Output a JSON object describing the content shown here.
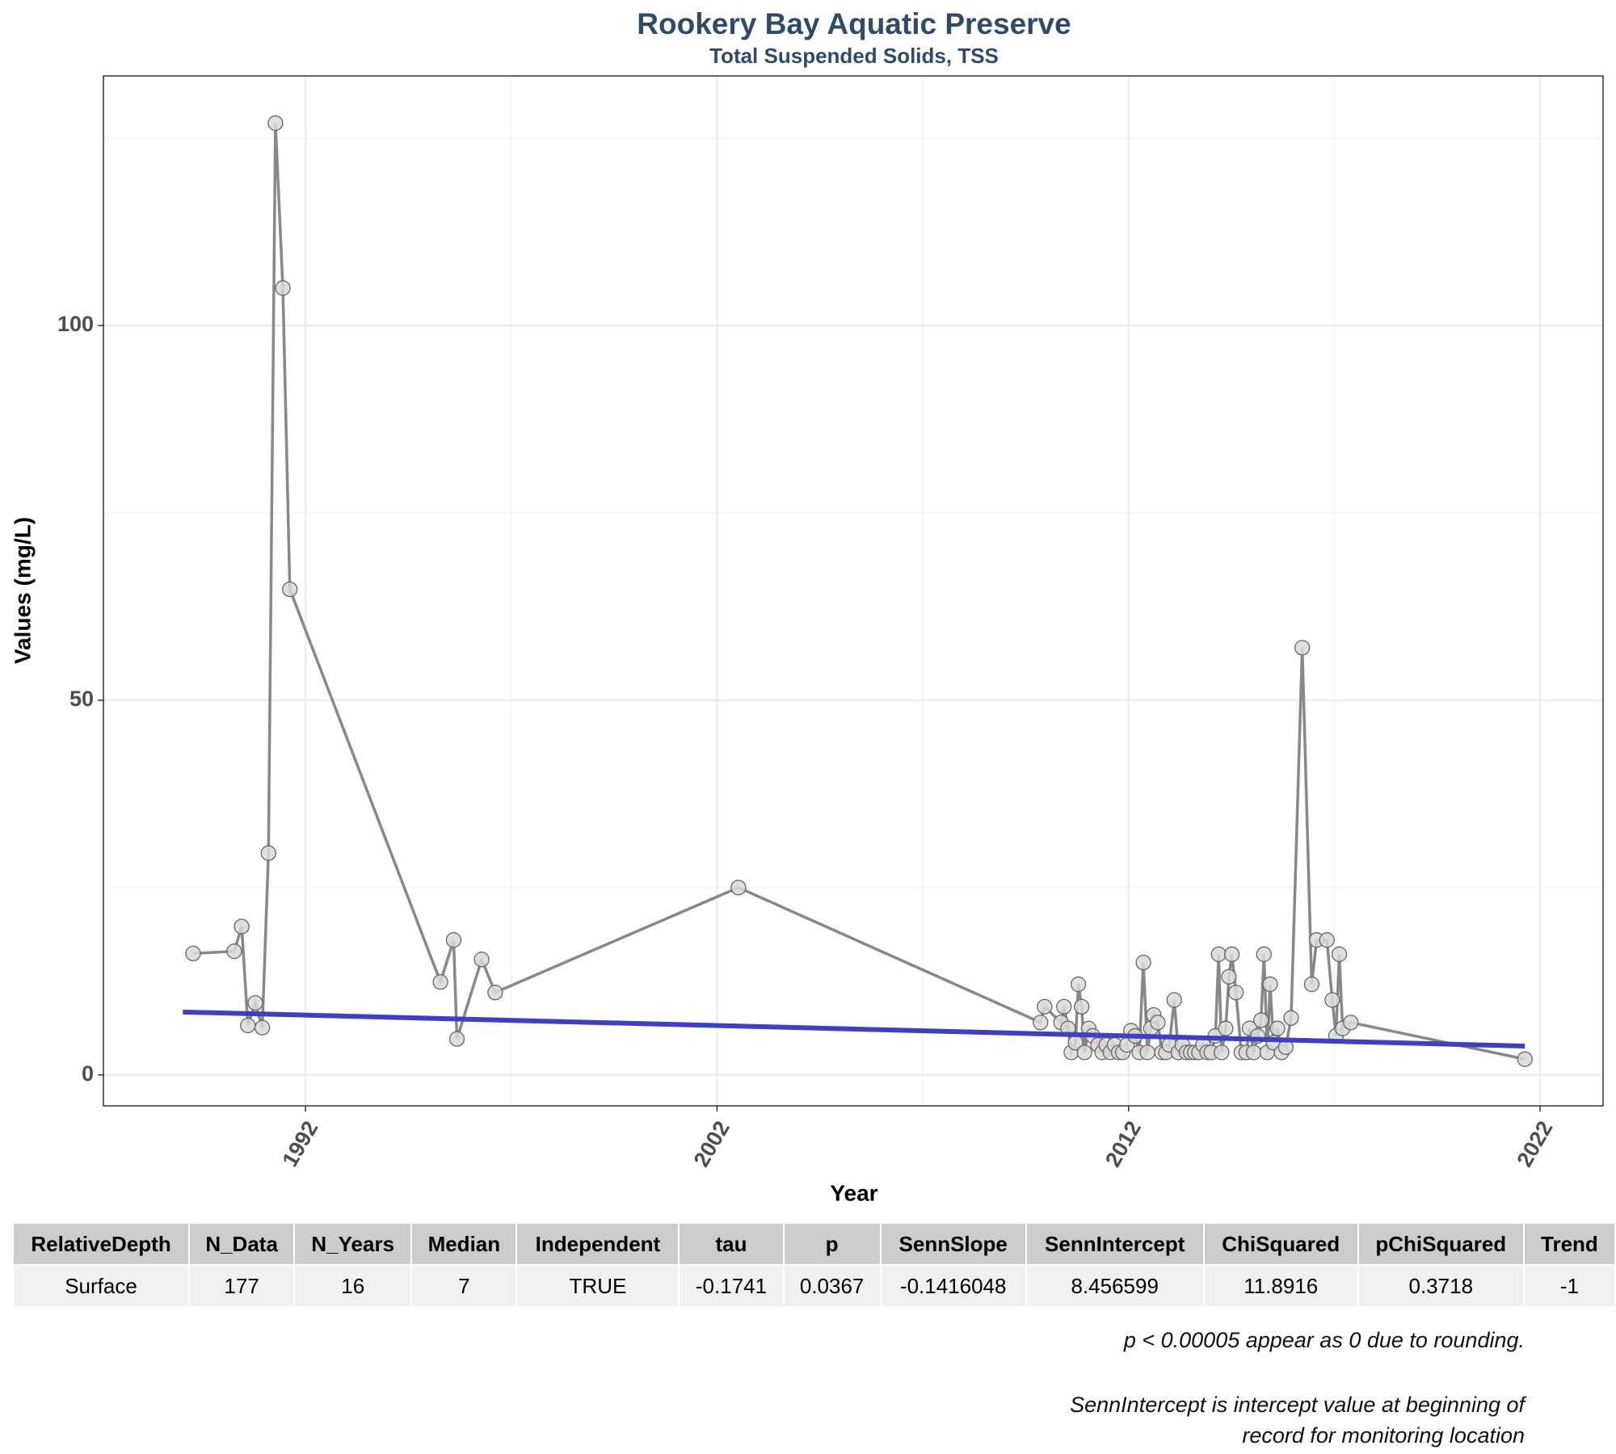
{
  "chart_data": {
    "type": "line",
    "title": "Rookery Bay Aquatic Preserve",
    "subtitle": "Total Suspended Solids, TSS",
    "x_label": "Year",
    "y_label": "Values (mg/L)",
    "x": [
      1989.27,
      1990.27,
      1990.45,
      1990.6,
      1990.78,
      1990.95,
      1991.1,
      1991.27,
      1991.45,
      1991.62,
      1995.28,
      1995.6,
      1995.68,
      1996.28,
      1996.61,
      2002.52,
      2009.86,
      2009.96,
      2010.36,
      2010.43,
      2010.53,
      2010.61,
      2010.71,
      2010.78,
      2010.86,
      2010.93,
      2011.03,
      2011.13,
      2011.26,
      2011.36,
      2011.46,
      2011.56,
      2011.66,
      2011.76,
      2011.86,
      2011.96,
      2012.06,
      2012.16,
      2012.26,
      2012.36,
      2012.46,
      2012.54,
      2012.61,
      2012.71,
      2012.81,
      2012.91,
      2012.99,
      2013.11,
      2013.21,
      2013.31,
      2013.41,
      2013.51,
      2013.61,
      2013.71,
      2013.81,
      2013.91,
      2014.01,
      2014.11,
      2014.19,
      2014.26,
      2014.36,
      2014.44,
      2014.51,
      2014.61,
      2014.74,
      2014.86,
      2014.94,
      2015.04,
      2015.14,
      2015.22,
      2015.29,
      2015.37,
      2015.44,
      2015.52,
      2015.62,
      2015.72,
      2015.82,
      2015.95,
      2016.22,
      2016.45,
      2016.57,
      2016.82,
      2016.95,
      2017.04,
      2017.12,
      2017.2,
      2017.4,
      2021.63
    ],
    "series": [
      {
        "color": "#888888",
        "marker_color": "#d9d9d9",
        "values": [
          16.2,
          16.5,
          19.8,
          6.6,
          9.6,
          6.3,
          29.6,
          127,
          105,
          64.8,
          12.4,
          18,
          4.8,
          15.4,
          11,
          25,
          7,
          9.1,
          7,
          9.1,
          6.2,
          3,
          4.3,
          12.1,
          9.1,
          3,
          6.2,
          5.2,
          4,
          3,
          4,
          3,
          4,
          3,
          3,
          4,
          5.9,
          5.2,
          3,
          15,
          3,
          6.2,
          8,
          7,
          3,
          3,
          4,
          10,
          3,
          4,
          3,
          3,
          3,
          3,
          4,
          3,
          3,
          5.2,
          16.1,
          3,
          6.2,
          13.1,
          16.1,
          11,
          3,
          3,
          6.2,
          3,
          5.2,
          7.3,
          16.1,
          3,
          12.1,
          4.3,
          6.2,
          3,
          3.7,
          7.6,
          57,
          12.1,
          18,
          18,
          10,
          5.2,
          16.1,
          6.2,
          7,
          2.1
        ]
      }
    ],
    "trend": {
      "color": "#3f3fbf",
      "x": [
        1989.02,
        2021.63
      ],
      "values": [
        8.39,
        3.85
      ]
    },
    "xlim": [
      1987.09,
      2023.53
    ],
    "ylim": [
      -4.13,
      133.3
    ],
    "xticks": [
      1992,
      2002,
      2012,
      2022
    ],
    "yticks": [
      0,
      50,
      100
    ],
    "grid": true
  },
  "table": {
    "columns": [
      "RelativeDepth",
      "N_Data",
      "N_Years",
      "Median",
      "Independent",
      "tau",
      "p",
      "SennSlope",
      "SennIntercept",
      "ChiSquared",
      "pChiSquared",
      "Trend"
    ],
    "rows": [
      [
        "Surface",
        177,
        16,
        7,
        "TRUE",
        -0.1741,
        0.0367,
        -0.1416048,
        8.456599,
        11.8916,
        0.3718,
        -1
      ]
    ]
  },
  "notes": [
    "p < 0.00005 appear as 0 due to rounding.",
    "SennIntercept is intercept value at beginning of record for monitoring location"
  ]
}
